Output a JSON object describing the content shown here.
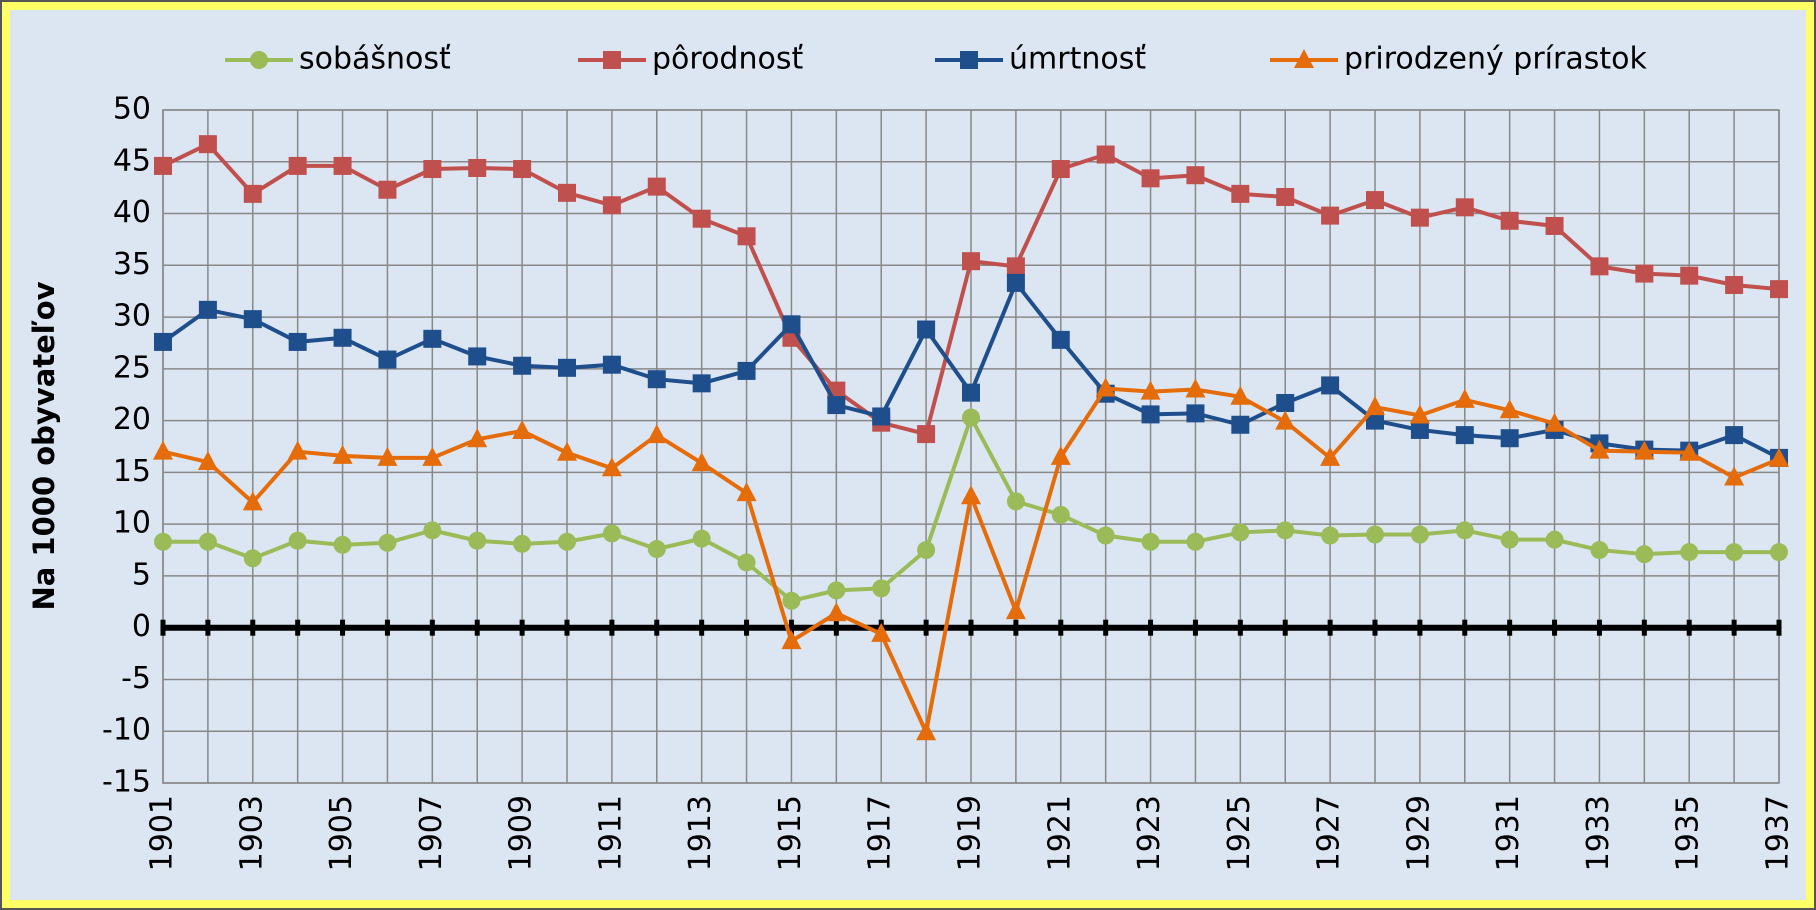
{
  "chart_data": {
    "type": "line",
    "y_label": "Na 1000 obyvateľov",
    "x": [
      1901,
      1902,
      1903,
      1904,
      1905,
      1906,
      1907,
      1908,
      1909,
      1910,
      1911,
      1912,
      1913,
      1914,
      1915,
      1916,
      1917,
      1918,
      1919,
      1920,
      1921,
      1922,
      1923,
      1924,
      1925,
      1926,
      1927,
      1928,
      1929,
      1930,
      1931,
      1932,
      1933,
      1934,
      1935,
      1936,
      1937
    ],
    "xlim": [
      1901,
      1937
    ],
    "xticks": [
      1901,
      1903,
      1905,
      1907,
      1909,
      1911,
      1913,
      1915,
      1917,
      1919,
      1921,
      1923,
      1925,
      1927,
      1929,
      1931,
      1933,
      1935,
      1937
    ],
    "ylim": [
      -15,
      50
    ],
    "yticks": [
      -15,
      -10,
      -5,
      0,
      5,
      10,
      15,
      20,
      25,
      30,
      35,
      40,
      45,
      50
    ],
    "grid": true,
    "legend": "top",
    "series": [
      {
        "name": "sobášnosť",
        "color": "#9bbb59",
        "marker": "circle",
        "values": [
          8.3,
          8.3,
          6.7,
          8.4,
          8.0,
          8.2,
          9.4,
          8.4,
          8.1,
          8.3,
          9.1,
          7.6,
          8.6,
          6.3,
          2.6,
          3.6,
          3.8,
          7.5,
          20.3,
          12.2,
          10.9,
          8.9,
          8.3,
          8.3,
          9.2,
          9.4,
          8.9,
          9.0,
          9.0,
          9.4,
          8.5,
          8.5,
          7.5,
          7.1,
          7.3,
          7.3,
          7.3
        ]
      },
      {
        "name": "pôrodnosť",
        "color": "#c0504d",
        "marker": "square",
        "values": [
          44.6,
          46.7,
          41.9,
          44.6,
          44.6,
          42.3,
          44.3,
          44.4,
          44.3,
          42.0,
          40.8,
          42.6,
          39.5,
          37.8,
          28.0,
          22.9,
          19.8,
          18.7,
          35.4,
          34.9,
          44.3,
          45.7,
          43.4,
          43.7,
          41.9,
          41.6,
          39.8,
          41.3,
          39.6,
          40.6,
          39.3,
          38.8,
          34.9,
          34.2,
          34.0,
          33.1,
          32.7
        ]
      },
      {
        "name": "úmrtnosť",
        "color": "#1f4e8c",
        "marker": "square",
        "values": [
          27.6,
          30.7,
          29.8,
          27.6,
          28.0,
          25.9,
          27.9,
          26.2,
          25.3,
          25.1,
          25.4,
          24.0,
          23.6,
          24.8,
          29.3,
          21.5,
          20.4,
          28.8,
          22.7,
          33.3,
          27.8,
          22.6,
          20.6,
          20.7,
          19.6,
          21.7,
          23.4,
          20.0,
          19.1,
          18.6,
          18.3,
          19.1,
          17.8,
          17.2,
          17.1,
          18.6,
          16.4
        ]
      },
      {
        "name": "prirodzený prírastok",
        "color": "#e46c0a",
        "marker": "triangle",
        "values": [
          17.0,
          16.0,
          12.1,
          17.0,
          16.6,
          16.4,
          16.4,
          18.2,
          19.0,
          16.9,
          15.4,
          18.6,
          15.9,
          13.0,
          -1.3,
          1.4,
          -0.6,
          -10.1,
          12.7,
          1.6,
          16.5,
          23.1,
          22.8,
          23.0,
          22.3,
          19.9,
          16.4,
          21.3,
          20.5,
          22.0,
          21.0,
          19.7,
          17.1,
          17.0,
          16.9,
          14.5,
          16.3
        ]
      }
    ]
  }
}
